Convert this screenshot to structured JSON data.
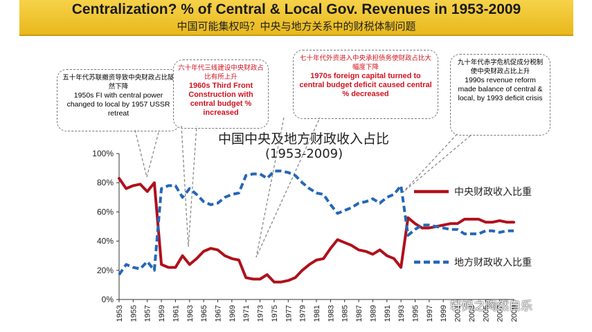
{
  "header": {
    "title": "Centralization?    % of Central & Local Gov. Revenues in 1953-2009",
    "subtitle": "中国可能集权吗？中央与地方关系中的财税体制问题"
  },
  "annotations": [
    {
      "zh": "五十年代苏联撤资导致中央财政占比陡然下降",
      "en": "1950s FI with central power changed to local by 1957 USSR retreat"
    },
    {
      "zh": "六十年代三线建设中央财政占比有所上升",
      "en": "1960s Third Front Construction with central budget % increased"
    },
    {
      "zh": "七十年代外资进入中央承担债务使财政占比大幅度下降",
      "en": "1970s foreign capital turned to central budget deficit caused central % decreased"
    },
    {
      "zh": "九十年代赤字危机促成分税制使中央财政占比上升",
      "en": "1990s revenue reform made balance of central & local, by 1993 deficit crisis"
    }
  ],
  "watermark": "轩妈之陶然自乐",
  "chart_data": {
    "type": "line",
    "title": "中国中央及地方财政收入占比",
    "subtitle": "(1953-2009)",
    "x": [
      1953,
      1954,
      1955,
      1956,
      1957,
      1958,
      1959,
      1960,
      1961,
      1962,
      1963,
      1964,
      1965,
      1966,
      1967,
      1968,
      1969,
      1970,
      1971,
      1972,
      1973,
      1974,
      1975,
      1976,
      1977,
      1978,
      1979,
      1980,
      1981,
      1982,
      1983,
      1984,
      1985,
      1986,
      1987,
      1988,
      1989,
      1990,
      1991,
      1992,
      1993,
      1994,
      1995,
      1996,
      1997,
      1998,
      1999,
      2000,
      2001,
      2002,
      2003,
      2004,
      2005,
      2006,
      2007,
      2008,
      2009
    ],
    "xticks": [
      "1953",
      "1955",
      "1957",
      "1959",
      "1961",
      "1963",
      "1965",
      "1967",
      "1969",
      "1971",
      "1973",
      "1975",
      "1977",
      "1979",
      "1981",
      "1983",
      "1985",
      "1987",
      "1989",
      "1991",
      "1993",
      "1995",
      "1997",
      "1999",
      "2001",
      "2003",
      "2005",
      "2007",
      "2009"
    ],
    "yticks": [
      "0%",
      "20%",
      "40%",
      "60%",
      "80%",
      "100%"
    ],
    "ylim": [
      0,
      100
    ],
    "series": [
      {
        "name": "中央财政收入比重",
        "color": "#b0101a",
        "style": "solid",
        "values": [
          83,
          76,
          78,
          79,
          74,
          80,
          24,
          22,
          22,
          30,
          24,
          28,
          33,
          35,
          34,
          30,
          28,
          27,
          15,
          14,
          14,
          17,
          12,
          12,
          13,
          15,
          20,
          24,
          27,
          28,
          35,
          41,
          39,
          37,
          34,
          33,
          31,
          34,
          30,
          28,
          22,
          56,
          52,
          49,
          49,
          50,
          51,
          52,
          52,
          55,
          55,
          55,
          53,
          53,
          54,
          53,
          53
        ]
      },
      {
        "name": "地方财政收入比重",
        "color": "#2566b8",
        "style": "dashed",
        "values": [
          17,
          24,
          22,
          21,
          26,
          20,
          76,
          78,
          78,
          70,
          76,
          72,
          67,
          65,
          66,
          70,
          72,
          73,
          85,
          86,
          86,
          83,
          88,
          88,
          87,
          85,
          80,
          76,
          73,
          72,
          65,
          59,
          61,
          63,
          66,
          67,
          69,
          66,
          70,
          72,
          78,
          44,
          48,
          51,
          51,
          50,
          49,
          48,
          48,
          45,
          45,
          45,
          47,
          47,
          46,
          47,
          47
        ]
      }
    ]
  }
}
